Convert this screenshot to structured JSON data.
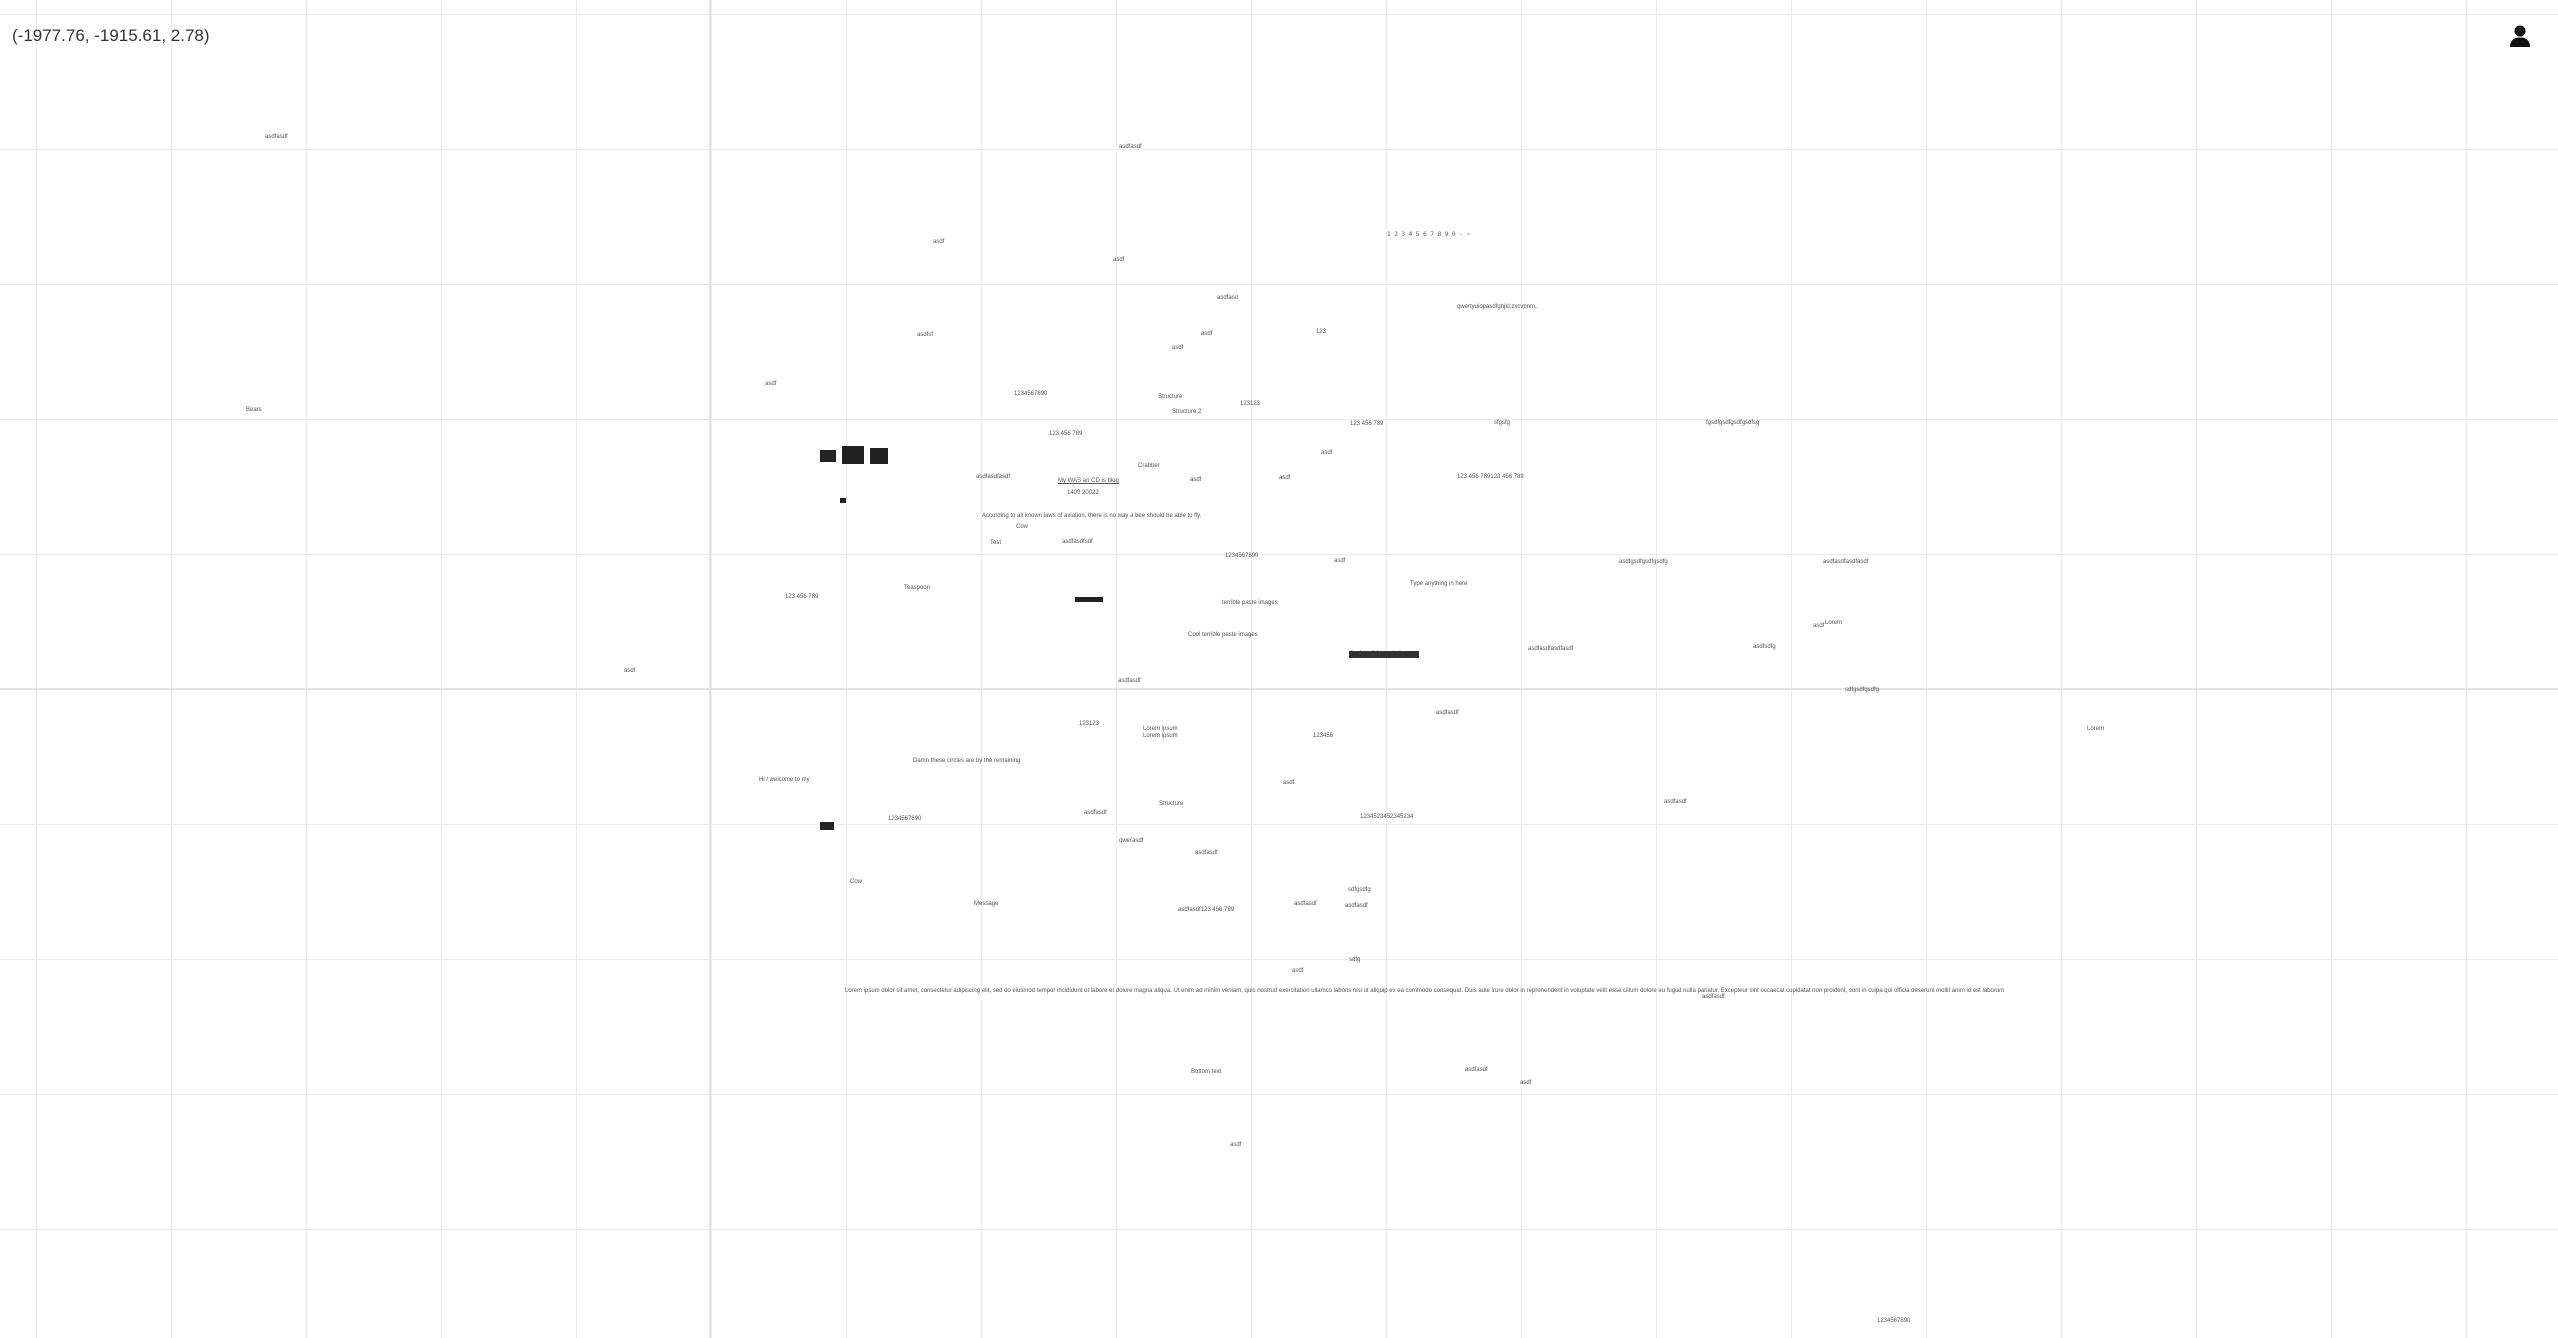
{
  "header": {
    "coordinates": "(-1977.76, -1915.61, 2.78)"
  },
  "user": {
    "icon": "user-icon"
  },
  "colors": {
    "grid": "#ececec",
    "axis": "#e2e2e2",
    "text": "#555555"
  },
  "notes": [
    "asdfasdf",
    "asdfasdf",
    "asdf",
    "asdf",
    "asdfasd",
    "asdfsf",
    "asdf",
    "asdf",
    "1 2 3 4 5 6 7 8 9 0 - ~",
    "qwertyuiopasdfghjkl;zxcvbnm,.",
    "asdf",
    "123",
    "Bears",
    "1234567890",
    "Structure",
    "Structure 2",
    "123123",
    "123 456 789",
    "123 456 789",
    "sfgsfg",
    "fgsdfgsdfgsdfgsdfsg",
    "Crabber",
    "asdfasdfasdf",
    "My WAS an CD is blog",
    "1400 20022",
    "asdf",
    "asdf",
    "asdf",
    "123 456 789123 456 789",
    "According to all known laws of aviation, there is no way a bee should be able to fly.",
    "Cow",
    "Test",
    "asdfasdfsdf",
    "asdfgsdfgsdfgsdfg",
    "asdfasdfasdfasdf",
    "123 456 789",
    "Teaspoon",
    "1234567890",
    "Type anything in here",
    "asdf",
    "terrible paste images",
    "Cool terrible paste images",
    "Cool terrible paste images",
    "asdfasdfasdfasdf",
    "asdfsdfg",
    "sdfgsdfgsdfg",
    "asdfasdf",
    "asdfasdf",
    "Damn these circles are by the remaining",
    "123123",
    "Lorem ipsum",
    "Lorem ipsum",
    "123456",
    "Hi / welcome to my",
    "asdfasdf",
    "1234567890",
    "1234523452345234",
    "Structure",
    "asdfasdf",
    "qwerasdf",
    "sdfgsdfg",
    "Cow",
    "Message",
    "asdfasdf",
    "asdfasdf123 456 789",
    "Lorem ipsum dolor sit amet, consectetur adipiscing elit, sed do eiusmod tempor incididunt ut labore et dolore magna aliqua. Ut enim ad minim veniam, quis nostrud exercitation ullamco laboris nisi ut aliquip ex ea commodo consequat. Duis aute irure dolor in reprehenderit in voluptate velit esse cillum dolore eu fugiat nulla pariatur. Excepteur sint occaecat cupidatat non proident, sunt in culpa qui officia deserunt mollit anim id est laborum",
    "asdfasdf",
    "asdfasdf",
    "asdf",
    "Bottom text",
    "1234567890",
    "Lorem",
    "Lorem",
    "asdf",
    "asdf",
    "asdf",
    "sdfg",
    "asdfasdf",
    "asdfasdf",
    "asdf",
    "asdf"
  ]
}
